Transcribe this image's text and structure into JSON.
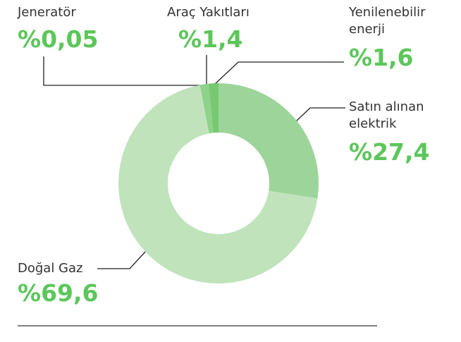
{
  "chart_data": {
    "type": "donut",
    "categories": [
      "Satın alınan elektrik",
      "Doğal Gaz",
      "Jeneratör",
      "Araç Yakıtları",
      "Yenilenebilir enerji"
    ],
    "values": [
      27.4,
      69.6,
      0.05,
      1.4,
      1.6
    ],
    "value_labels": [
      "%27,4",
      "%69,6",
      "%0,05",
      "%1,4",
      "%1,6"
    ],
    "colors": [
      "#9dd49a",
      "#c0e3bc",
      "#cde9c9",
      "#8fd28a",
      "#76c971"
    ]
  }
}
